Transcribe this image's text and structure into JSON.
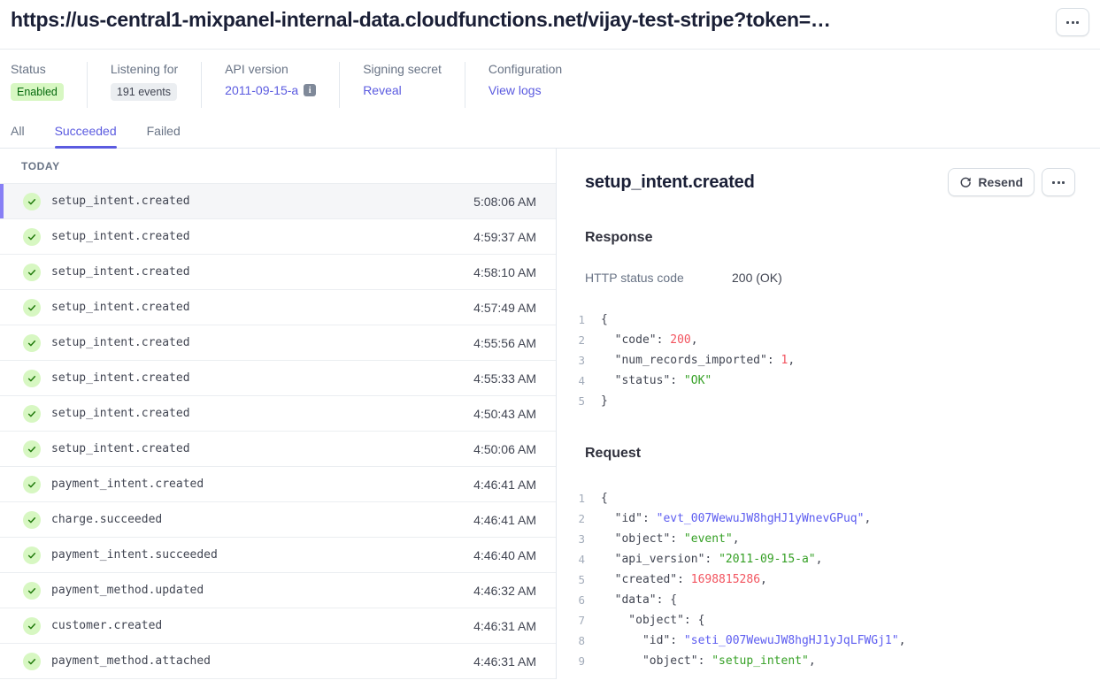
{
  "colors": {
    "accent": "#5b5be0",
    "sel_bar": "#877ff5",
    "code_num": "#f2545f",
    "code_str": "#35a025",
    "code_id": "#5c5cf0",
    "badge_green_bg": "#d7f7c2",
    "badge_green_text": "#05690d",
    "check_stroke": "#217a0c"
  },
  "header": {
    "title": "https://us-central1-mixpanel-internal-data.cloudfunctions.net/vijay-test-stripe?token=…"
  },
  "meta": {
    "columns": [
      {
        "label": "Status",
        "value": "Enabled",
        "type": "badge-green"
      },
      {
        "label": "Listening for",
        "value": "191 events",
        "type": "badge-gray"
      },
      {
        "label": "API version",
        "value": "2011-09-15-a",
        "type": "link-info"
      },
      {
        "label": "Signing secret",
        "value": "Reveal",
        "type": "link"
      },
      {
        "label": "Configuration",
        "value": "View logs",
        "type": "link"
      }
    ]
  },
  "tabs": [
    {
      "label": "All",
      "active": false
    },
    {
      "label": "Succeeded",
      "active": true
    },
    {
      "label": "Failed",
      "active": false
    }
  ],
  "event_list": {
    "group_label": "TODAY",
    "rows": [
      {
        "name": "setup_intent.created",
        "time": "5:08:06 AM",
        "selected": true
      },
      {
        "name": "setup_intent.created",
        "time": "4:59:37 AM",
        "selected": false
      },
      {
        "name": "setup_intent.created",
        "time": "4:58:10 AM",
        "selected": false
      },
      {
        "name": "setup_intent.created",
        "time": "4:57:49 AM",
        "selected": false
      },
      {
        "name": "setup_intent.created",
        "time": "4:55:56 AM",
        "selected": false
      },
      {
        "name": "setup_intent.created",
        "time": "4:55:33 AM",
        "selected": false
      },
      {
        "name": "setup_intent.created",
        "time": "4:50:43 AM",
        "selected": false
      },
      {
        "name": "setup_intent.created",
        "time": "4:50:06 AM",
        "selected": false
      },
      {
        "name": "payment_intent.created",
        "time": "4:46:41 AM",
        "selected": false
      },
      {
        "name": "charge.succeeded",
        "time": "4:46:41 AM",
        "selected": false
      },
      {
        "name": "payment_intent.succeeded",
        "time": "4:46:40 AM",
        "selected": false
      },
      {
        "name": "payment_method.updated",
        "time": "4:46:32 AM",
        "selected": false
      },
      {
        "name": "customer.created",
        "time": "4:46:31 AM",
        "selected": false
      },
      {
        "name": "payment_method.attached",
        "time": "4:46:31 AM",
        "selected": false
      }
    ]
  },
  "detail": {
    "title": "setup_intent.created",
    "resend_label": "Resend",
    "response": {
      "heading": "Response",
      "status_label": "HTTP status code",
      "status_value": "200 (OK)",
      "code_lines": [
        [
          {
            "t": "{",
            "c": "plain"
          }
        ],
        [
          {
            "t": "  \"code\": ",
            "c": "plain"
          },
          {
            "t": "200",
            "c": "num"
          },
          {
            "t": ",",
            "c": "plain"
          }
        ],
        [
          {
            "t": "  \"num_records_imported\": ",
            "c": "plain"
          },
          {
            "t": "1",
            "c": "num"
          },
          {
            "t": ",",
            "c": "plain"
          }
        ],
        [
          {
            "t": "  \"status\": ",
            "c": "plain"
          },
          {
            "t": "\"OK\"",
            "c": "str"
          }
        ],
        [
          {
            "t": "}",
            "c": "plain"
          }
        ]
      ]
    },
    "request": {
      "heading": "Request",
      "code_lines": [
        [
          {
            "t": "{",
            "c": "plain"
          }
        ],
        [
          {
            "t": "  \"id\": ",
            "c": "plain"
          },
          {
            "t": "\"evt_007WewuJW8hgHJ1yWnevGPuq\"",
            "c": "id"
          },
          {
            "t": ",",
            "c": "plain"
          }
        ],
        [
          {
            "t": "  \"object\": ",
            "c": "plain"
          },
          {
            "t": "\"event\"",
            "c": "str"
          },
          {
            "t": ",",
            "c": "plain"
          }
        ],
        [
          {
            "t": "  \"api_version\": ",
            "c": "plain"
          },
          {
            "t": "\"2011-09-15-a\"",
            "c": "str"
          },
          {
            "t": ",",
            "c": "plain"
          }
        ],
        [
          {
            "t": "  \"created\": ",
            "c": "plain"
          },
          {
            "t": "1698815286",
            "c": "num"
          },
          {
            "t": ",",
            "c": "plain"
          }
        ],
        [
          {
            "t": "  \"data\": {",
            "c": "plain"
          }
        ],
        [
          {
            "t": "    \"object\": {",
            "c": "plain"
          }
        ],
        [
          {
            "t": "      \"id\": ",
            "c": "plain"
          },
          {
            "t": "\"seti_007WewuJW8hgHJ1yJqLFWGj1\"",
            "c": "id"
          },
          {
            "t": ",",
            "c": "plain"
          }
        ],
        [
          {
            "t": "      \"object\": ",
            "c": "plain"
          },
          {
            "t": "\"setup_intent\"",
            "c": "str"
          },
          {
            "t": ",",
            "c": "plain"
          }
        ]
      ]
    }
  }
}
